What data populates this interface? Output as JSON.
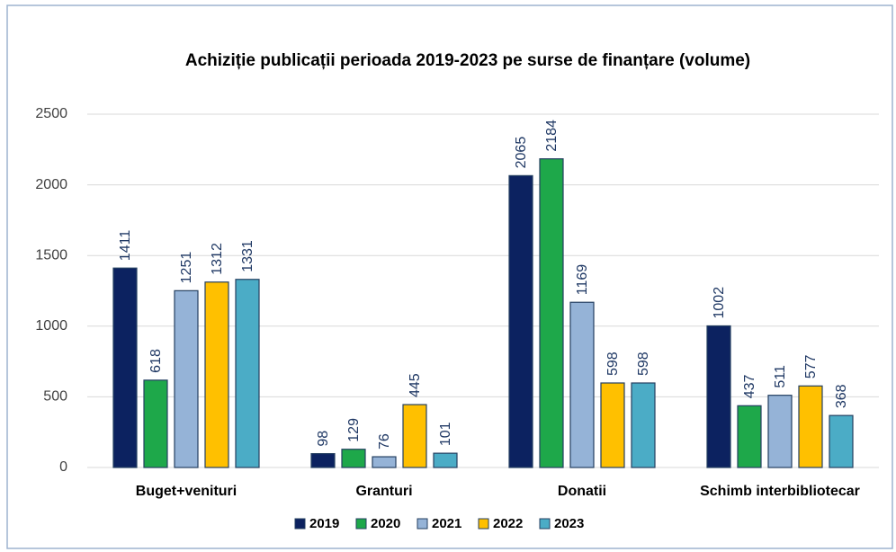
{
  "chart_data": {
    "type": "bar",
    "title": "Achiziție publicații perioada 2019-2023 pe surse de finanțare (volume)",
    "categories": [
      "Buget+venituri",
      "Granturi",
      "Donatii",
      "Schimb interbibliotecar"
    ],
    "series": [
      {
        "name": "2019",
        "color": "#0c2260",
        "values": [
          1411,
          98,
          2065,
          1002
        ]
      },
      {
        "name": "2020",
        "color": "#1ea84a",
        "values": [
          618,
          129,
          2184,
          437
        ]
      },
      {
        "name": "2021",
        "color": "#95b3d7",
        "values": [
          1251,
          76,
          1169,
          511
        ]
      },
      {
        "name": "2022",
        "color": "#ffc000",
        "values": [
          1312,
          445,
          598,
          577
        ]
      },
      {
        "name": "2023",
        "color": "#4bacc6",
        "values": [
          1331,
          101,
          598,
          368
        ]
      }
    ],
    "ylim": [
      0,
      2500
    ],
    "yticks": [
      0,
      500,
      1000,
      1500,
      2000,
      2500
    ],
    "grid": true,
    "legend": "bottom"
  }
}
